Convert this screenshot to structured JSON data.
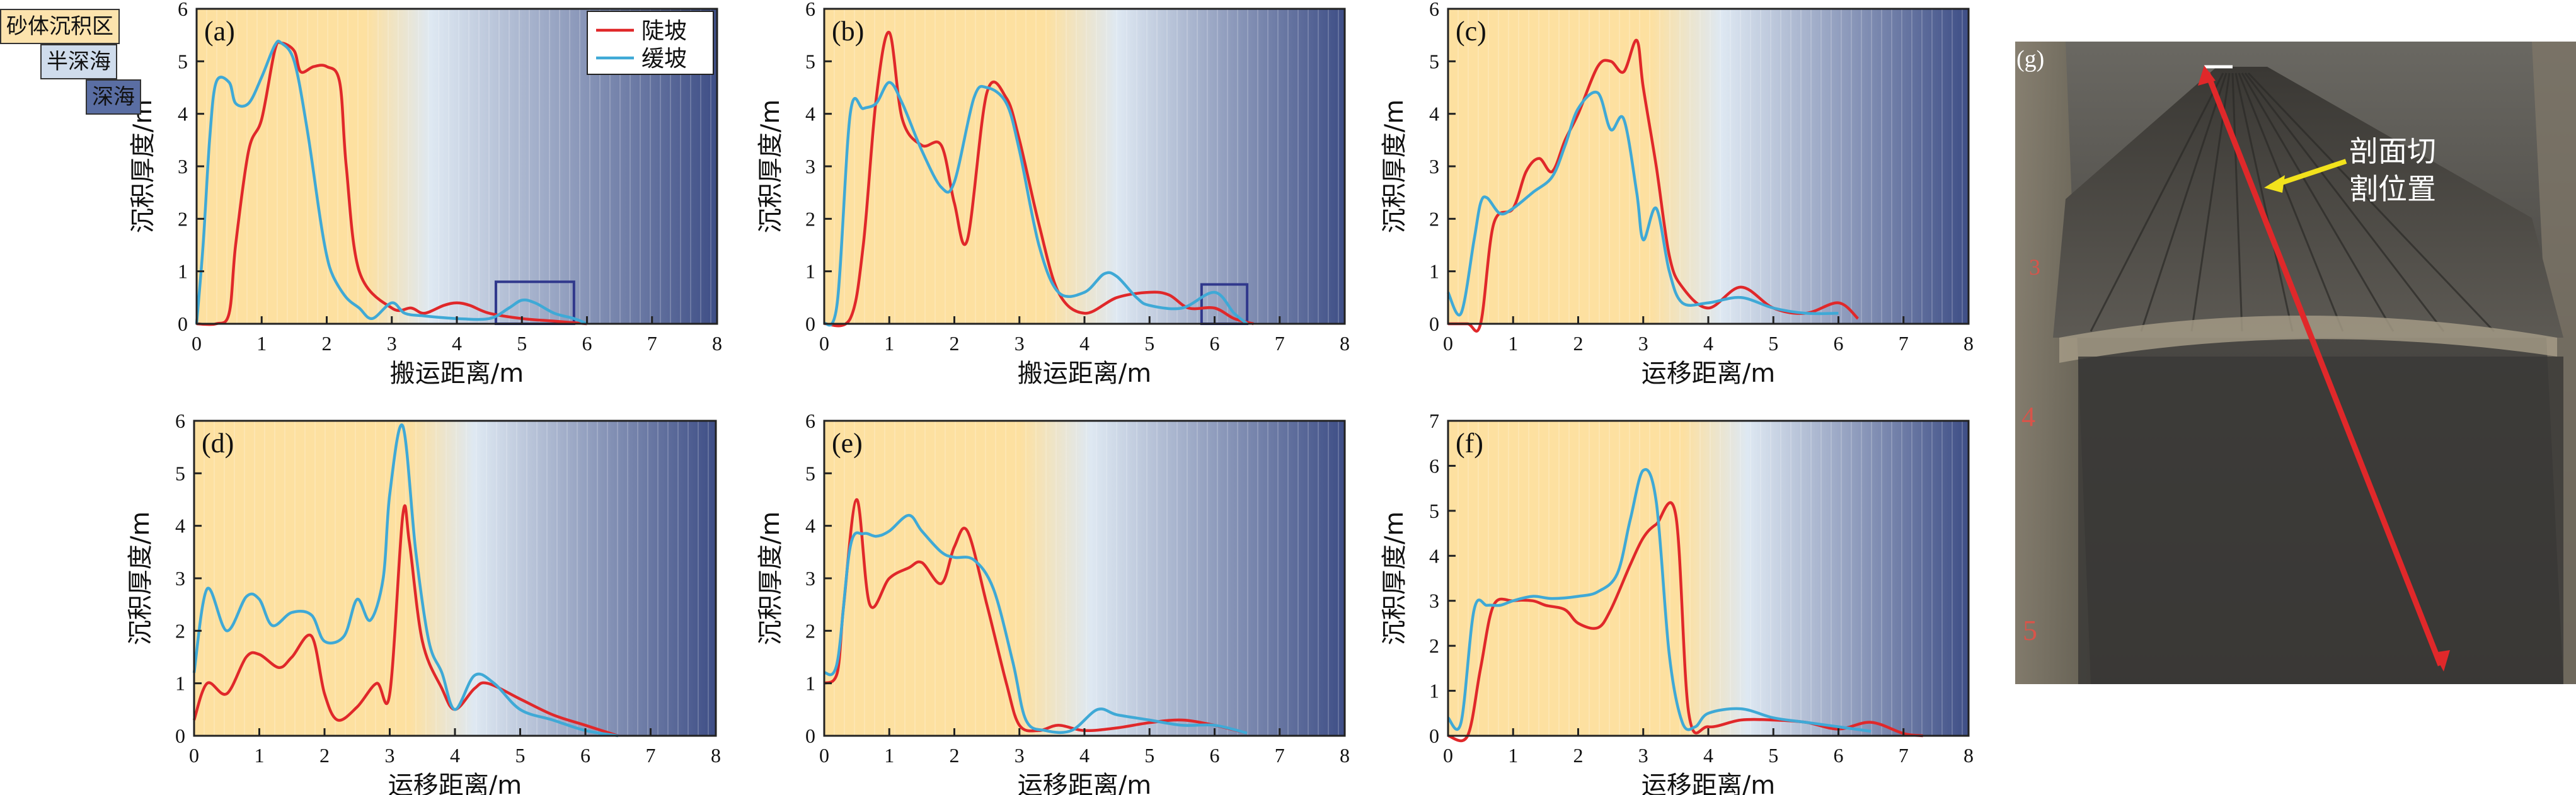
{
  "legend_zones": [
    {
      "label": "砂体沉积区",
      "color": "#fce3ad"
    },
    {
      "label": "半深海",
      "color": "#cfdcec"
    },
    {
      "label": "深海",
      "color": "#5a6ea3"
    }
  ],
  "colors": {
    "steep": "#e0282a",
    "gentle": "#3fa9d6",
    "sand_zone": "#fde0a0",
    "deep_end": "#3e4e86",
    "highlight_box": "#30388c"
  },
  "series_names": {
    "steep": "陡坡",
    "gentle": "缓坡"
  },
  "photo": {
    "label": "(g)",
    "annotation_line1": "剖面切",
    "annotation_line2": "割位置",
    "ruler_marks": [
      "3",
      "4",
      "5"
    ]
  },
  "chart_data": [
    {
      "type": "line",
      "panel": "(a)",
      "xlabel": "搬运距离/m",
      "ylabel": "沉积厚度/m",
      "xlim": [
        0,
        8
      ],
      "ylim": [
        0,
        6
      ],
      "xticks": [
        0,
        1,
        2,
        3,
        4,
        5,
        6,
        7,
        8
      ],
      "yticks": [
        0,
        1,
        2,
        3,
        4,
        5,
        6
      ],
      "legend": true,
      "legend_position": "top-right",
      "sand_end": 2.6,
      "transition_end": 3.6,
      "highlight": [
        4.6,
        5.8,
        0,
        0.8
      ],
      "series": [
        {
          "name": "陡坡",
          "key": "steep",
          "x": [
            0,
            0.3,
            0.5,
            0.6,
            0.8,
            1.0,
            1.2,
            1.3,
            1.5,
            1.6,
            1.8,
            2.0,
            2.2,
            2.3,
            2.5,
            3.0,
            3.3,
            3.5,
            3.8,
            4.0,
            4.2,
            4.5,
            5.0,
            5.5,
            6.0
          ],
          "y": [
            0,
            0,
            0.2,
            1.5,
            3.3,
            3.9,
            5.2,
            5.35,
            5.2,
            4.8,
            4.9,
            4.9,
            4.6,
            3.0,
            1.0,
            0.3,
            0.3,
            0.2,
            0.35,
            0.4,
            0.35,
            0.2,
            0.1,
            0.05,
            0
          ]
        },
        {
          "name": "缓坡",
          "key": "gentle",
          "x": [
            0,
            0.1,
            0.2,
            0.3,
            0.5,
            0.6,
            0.8,
            1.0,
            1.2,
            1.3,
            1.5,
            1.7,
            1.9,
            2.0,
            2.1,
            2.3,
            2.5,
            2.7,
            3.0,
            3.2,
            3.5,
            4.0,
            4.5,
            4.8,
            5.0,
            5.2,
            5.5,
            5.8,
            6.0
          ],
          "y": [
            0,
            1.5,
            3.5,
            4.6,
            4.6,
            4.2,
            4.2,
            4.7,
            5.3,
            5.35,
            5.0,
            3.7,
            2.0,
            1.3,
            0.9,
            0.5,
            0.3,
            0.1,
            0.4,
            0.2,
            0.15,
            0.1,
            0.1,
            0.3,
            0.45,
            0.4,
            0.2,
            0.1,
            0
          ]
        }
      ]
    },
    {
      "type": "line",
      "panel": "(b)",
      "xlabel": "搬运距离/m",
      "ylabel": "沉积厚度/m",
      "xlim": [
        0,
        8
      ],
      "ylim": [
        0,
        6
      ],
      "xticks": [
        0,
        1,
        2,
        3,
        4,
        5,
        6,
        7,
        8
      ],
      "yticks": [
        0,
        1,
        2,
        3,
        4,
        5,
        6
      ],
      "legend": false,
      "sand_end": 3.4,
      "transition_end": 4.5,
      "highlight": [
        5.8,
        6.5,
        0,
        0.75
      ],
      "series": [
        {
          "name": "陡坡",
          "key": "steep",
          "x": [
            0,
            0.4,
            0.6,
            0.8,
            1.0,
            1.2,
            1.5,
            1.8,
            2.0,
            2.2,
            2.5,
            2.8,
            3.0,
            3.3,
            3.6,
            4.0,
            4.5,
            5.0,
            5.3,
            5.6,
            6.0,
            6.3,
            6.6
          ],
          "y": [
            0,
            0.1,
            1.5,
            4.3,
            5.55,
            3.9,
            3.4,
            3.4,
            2.3,
            1.6,
            4.4,
            4.3,
            3.5,
            1.9,
            0.6,
            0.2,
            0.5,
            0.6,
            0.55,
            0.3,
            0.3,
            0.1,
            0
          ]
        },
        {
          "name": "缓坡",
          "key": "gentle",
          "x": [
            0,
            0.2,
            0.4,
            0.6,
            0.8,
            1.0,
            1.2,
            1.5,
            1.8,
            2.0,
            2.3,
            2.5,
            2.8,
            3.0,
            3.3,
            3.6,
            4.0,
            4.3,
            4.5,
            4.8,
            5.0,
            5.5,
            6.0,
            6.3,
            6.5
          ],
          "y": [
            0,
            0.4,
            4.0,
            4.1,
            4.2,
            4.6,
            4.2,
            3.3,
            2.6,
            2.7,
            4.3,
            4.5,
            4.2,
            3.3,
            1.5,
            0.6,
            0.6,
            0.95,
            0.9,
            0.5,
            0.35,
            0.3,
            0.6,
            0.2,
            0
          ]
        }
      ]
    },
    {
      "type": "line",
      "panel": "(c)",
      "xlabel": "运移距离/m",
      "ylabel": "沉积厚度/m",
      "xlim": [
        0,
        8
      ],
      "ylim": [
        0,
        6
      ],
      "xticks": [
        0,
        1,
        2,
        3,
        4,
        5,
        6,
        7,
        8
      ],
      "yticks": [
        0,
        1,
        2,
        3,
        4,
        5,
        6
      ],
      "legend": false,
      "sand_end": 3.1,
      "transition_end": 4.2,
      "highlight": null,
      "series": [
        {
          "name": "陡坡",
          "key": "steep",
          "x": [
            0,
            0.3,
            0.5,
            0.7,
            1.0,
            1.2,
            1.4,
            1.6,
            1.8,
            2.0,
            2.3,
            2.5,
            2.7,
            2.9,
            3.0,
            3.2,
            3.4,
            3.6,
            4.0,
            4.5,
            5.0,
            5.5,
            6.0,
            6.3
          ],
          "y": [
            0,
            0,
            0,
            1.9,
            2.2,
            2.9,
            3.15,
            2.9,
            3.5,
            4.0,
            4.9,
            5.0,
            4.8,
            5.4,
            4.5,
            3.0,
            1.3,
            0.7,
            0.3,
            0.7,
            0.3,
            0.2,
            0.4,
            0.1
          ]
        },
        {
          "name": "缓坡",
          "key": "gentle",
          "x": [
            0,
            0.2,
            0.4,
            0.5,
            0.6,
            0.8,
            1.0,
            1.3,
            1.6,
            1.8,
            2.0,
            2.3,
            2.5,
            2.7,
            2.9,
            3.0,
            3.2,
            3.4,
            3.6,
            4.0,
            4.5,
            5.0,
            5.5,
            6.0
          ],
          "y": [
            0.6,
            0.2,
            1.6,
            2.3,
            2.4,
            2.1,
            2.2,
            2.5,
            2.8,
            3.4,
            4.1,
            4.4,
            3.7,
            3.9,
            2.5,
            1.6,
            2.2,
            1.0,
            0.4,
            0.4,
            0.5,
            0.3,
            0.2,
            0.2
          ]
        }
      ]
    },
    {
      "type": "line",
      "panel": "(d)",
      "xlabel": "运移距离/m",
      "ylabel": "沉积厚度/m",
      "xlim": [
        0,
        8
      ],
      "ylim": [
        0,
        6
      ],
      "xticks": [
        0,
        1,
        2,
        3,
        4,
        5,
        6,
        7,
        8
      ],
      "yticks": [
        0,
        1,
        2,
        3,
        4,
        5,
        6
      ],
      "legend": false,
      "sand_end": 3.3,
      "transition_end": 4.3,
      "highlight": null,
      "series": [
        {
          "name": "陡坡",
          "key": "steep",
          "x": [
            0,
            0.2,
            0.5,
            0.8,
            1.0,
            1.3,
            1.5,
            1.8,
            2.0,
            2.2,
            2.5,
            2.8,
            3.0,
            3.2,
            3.3,
            3.5,
            3.8,
            4.0,
            4.3,
            4.5,
            5.0,
            5.5,
            6.0,
            6.5
          ],
          "y": [
            0.3,
            1.0,
            0.8,
            1.5,
            1.55,
            1.3,
            1.5,
            1.9,
            0.8,
            0.3,
            0.55,
            1.0,
            0.8,
            4.2,
            3.7,
            1.8,
            0.9,
            0.5,
            0.9,
            1.0,
            0.7,
            0.4,
            0.2,
            0
          ]
        },
        {
          "name": "缓坡",
          "key": "gentle",
          "x": [
            0,
            0.2,
            0.5,
            0.8,
            1.0,
            1.2,
            1.5,
            1.8,
            2.0,
            2.3,
            2.5,
            2.7,
            2.9,
            3.0,
            3.2,
            3.4,
            3.6,
            3.8,
            4.0,
            4.3,
            4.6,
            5.0,
            5.5,
            6.0,
            6.5
          ],
          "y": [
            1.2,
            2.8,
            2.0,
            2.65,
            2.6,
            2.1,
            2.35,
            2.3,
            1.8,
            1.9,
            2.6,
            2.2,
            3.0,
            4.6,
            5.9,
            3.5,
            1.8,
            1.2,
            0.5,
            1.15,
            1.0,
            0.5,
            0.3,
            0.1,
            0
          ]
        }
      ]
    },
    {
      "type": "line",
      "panel": "(e)",
      "xlabel": "运移距离/m",
      "ylabel": "沉积厚度/m",
      "xlim": [
        0,
        8
      ],
      "ylim": [
        0,
        6
      ],
      "xticks": [
        0,
        1,
        2,
        3,
        4,
        5,
        6,
        7,
        8
      ],
      "yticks": [
        0,
        1,
        2,
        3,
        4,
        5,
        6
      ],
      "legend": false,
      "sand_end": 3.0,
      "transition_end": 4.1,
      "highlight": null,
      "series": [
        {
          "name": "陡坡",
          "key": "steep",
          "x": [
            0,
            0.2,
            0.3,
            0.5,
            0.7,
            1.0,
            1.3,
            1.5,
            1.8,
            2.0,
            2.2,
            2.5,
            2.8,
            3.0,
            3.3,
            3.6,
            4.0,
            4.5,
            5.0,
            5.5,
            6.0,
            6.5
          ],
          "y": [
            1.0,
            1.2,
            2.5,
            4.5,
            2.5,
            3.0,
            3.2,
            3.3,
            2.9,
            3.6,
            3.9,
            2.5,
            1.0,
            0.2,
            0.1,
            0.2,
            0.1,
            0.15,
            0.25,
            0.3,
            0.2,
            0.05
          ]
        },
        {
          "name": "缓坡",
          "key": "gentle",
          "x": [
            0,
            0.2,
            0.4,
            0.6,
            0.8,
            1.0,
            1.3,
            1.5,
            1.8,
            2.0,
            2.3,
            2.6,
            2.9,
            3.1,
            3.4,
            3.8,
            4.2,
            4.5,
            5.0,
            5.5,
            6.0,
            6.5
          ],
          "y": [
            1.2,
            1.4,
            3.6,
            3.85,
            3.8,
            3.9,
            4.2,
            3.9,
            3.5,
            3.4,
            3.35,
            2.8,
            1.4,
            0.3,
            0.1,
            0.1,
            0.5,
            0.4,
            0.3,
            0.2,
            0.2,
            0.05
          ]
        }
      ]
    },
    {
      "type": "line",
      "panel": "(f)",
      "xlabel": "运移距离/m",
      "ylabel": "沉积厚度/m",
      "xlim": [
        0,
        8
      ],
      "ylim": [
        0,
        7
      ],
      "xticks": [
        0,
        1,
        2,
        3,
        4,
        5,
        6,
        7,
        8
      ],
      "yticks": [
        0,
        1,
        2,
        3,
        4,
        5,
        6,
        7
      ],
      "legend": false,
      "sand_end": 3.6,
      "transition_end": 4.6,
      "highlight": null,
      "series": [
        {
          "name": "陡坡",
          "key": "steep",
          "x": [
            0,
            0.3,
            0.5,
            0.7,
            1.0,
            1.3,
            1.5,
            1.8,
            2.0,
            2.3,
            2.5,
            2.8,
            3.0,
            3.2,
            3.5,
            3.7,
            4.0,
            4.5,
            5.0,
            5.5,
            6.0,
            6.5,
            7.0,
            7.3
          ],
          "y": [
            0,
            0,
            1.5,
            2.9,
            3.0,
            3.0,
            2.9,
            2.8,
            2.5,
            2.4,
            2.8,
            3.8,
            4.4,
            4.7,
            4.9,
            0.5,
            0.2,
            0.35,
            0.35,
            0.3,
            0.15,
            0.3,
            0.05,
            0
          ]
        },
        {
          "name": "缓坡",
          "key": "gentle",
          "x": [
            0,
            0.2,
            0.4,
            0.6,
            0.8,
            1.0,
            1.3,
            1.6,
            2.0,
            2.3,
            2.6,
            2.8,
            3.0,
            3.2,
            3.4,
            3.6,
            3.8,
            4.0,
            4.5,
            5.0,
            5.5,
            6.0,
            6.5
          ],
          "y": [
            0.4,
            0.3,
            2.8,
            2.9,
            2.9,
            3.0,
            3.1,
            3.05,
            3.1,
            3.2,
            3.6,
            4.8,
            5.9,
            5.2,
            1.8,
            0.3,
            0.2,
            0.5,
            0.6,
            0.4,
            0.3,
            0.2,
            0.1
          ]
        }
      ]
    }
  ]
}
